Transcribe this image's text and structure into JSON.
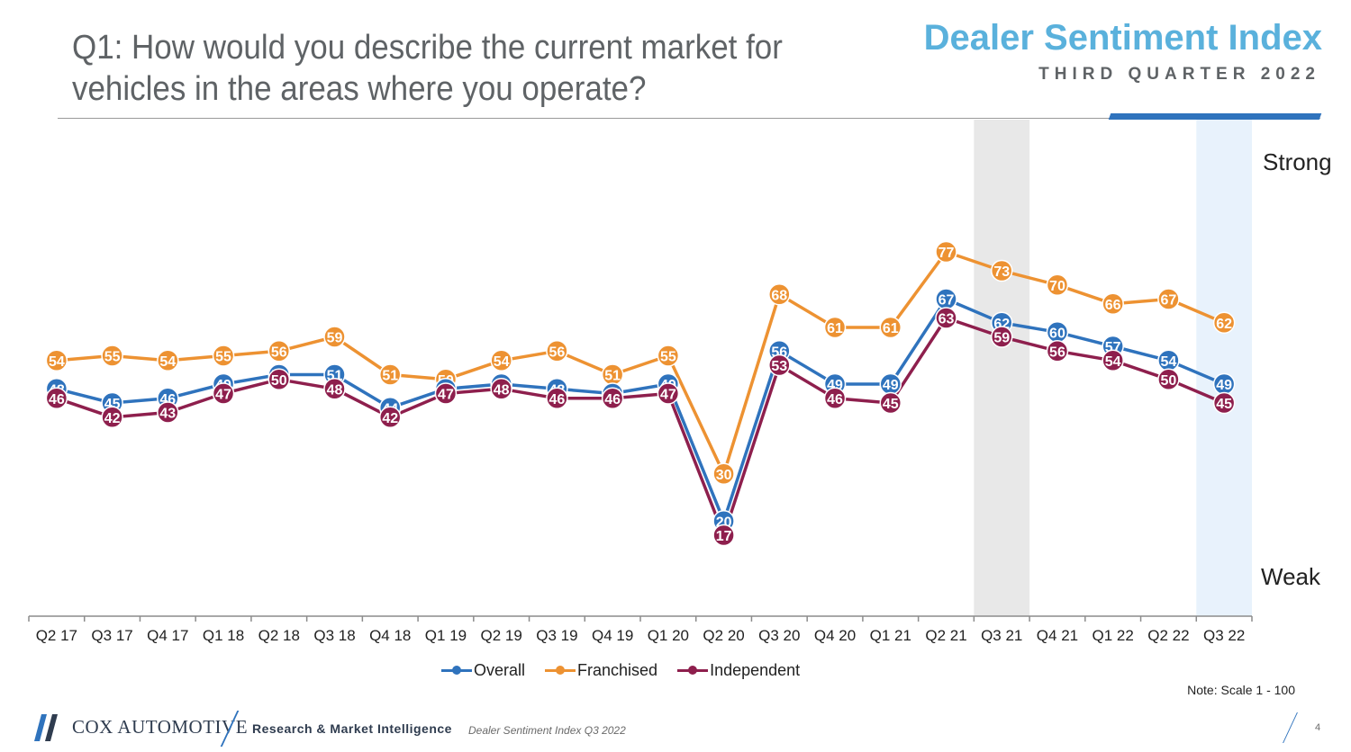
{
  "header": {
    "question": "Q1: How would you describe the current market for vehicles in the areas where you operate?",
    "brand_title": "Dealer Sentiment Index",
    "brand_subtitle": "THIRD QUARTER 2022"
  },
  "colors": {
    "overall": "#2f73bd",
    "franchised": "#ed9232",
    "independent": "#8e1f4d",
    "highlight_gray": "#e8e8e8",
    "highlight_blue": "#e8f2fc",
    "title_blue": "#5ab1dc"
  },
  "chart_data": {
    "type": "line",
    "categories": [
      "Q2 17",
      "Q3 17",
      "Q4 17",
      "Q1 18",
      "Q2 18",
      "Q3 18",
      "Q4 18",
      "Q1 19",
      "Q2 19",
      "Q3 19",
      "Q4 19",
      "Q1 20",
      "Q2 20",
      "Q3 20",
      "Q4 20",
      "Q1 21",
      "Q2 21",
      "Q3 21",
      "Q4 21",
      "Q1 22",
      "Q2 22",
      "Q3 22"
    ],
    "series": [
      {
        "name": "Overall",
        "values": [
          48,
          45,
          46,
          49,
          51,
          51,
          44,
          48,
          49,
          48,
          47,
          49,
          20,
          56,
          49,
          49,
          67,
          62,
          60,
          57,
          54,
          49
        ]
      },
      {
        "name": "Franchised",
        "values": [
          54,
          55,
          54,
          55,
          56,
          59,
          51,
          50,
          54,
          56,
          51,
          55,
          30,
          68,
          61,
          61,
          77,
          73,
          70,
          66,
          67,
          62
        ]
      },
      {
        "name": "Independent",
        "values": [
          46,
          42,
          43,
          47,
          50,
          48,
          42,
          47,
          48,
          46,
          46,
          47,
          17,
          53,
          46,
          45,
          63,
          59,
          56,
          54,
          50,
          45
        ]
      }
    ],
    "y_scale_labels": {
      "top": "Strong",
      "bottom": "Weak"
    },
    "highlighted_categories": [
      "Q3 21",
      "Q3 22"
    ],
    "legend": [
      "Overall",
      "Franchised",
      "Independent"
    ],
    "legend_position": "bottom"
  },
  "note": "Note: Scale 1 - 100",
  "footer": {
    "company": "COX AUTOMOTIVE",
    "department": "Research & Market Intelligence",
    "document": "Dealer Sentiment Index Q3 2022",
    "page": "4"
  }
}
